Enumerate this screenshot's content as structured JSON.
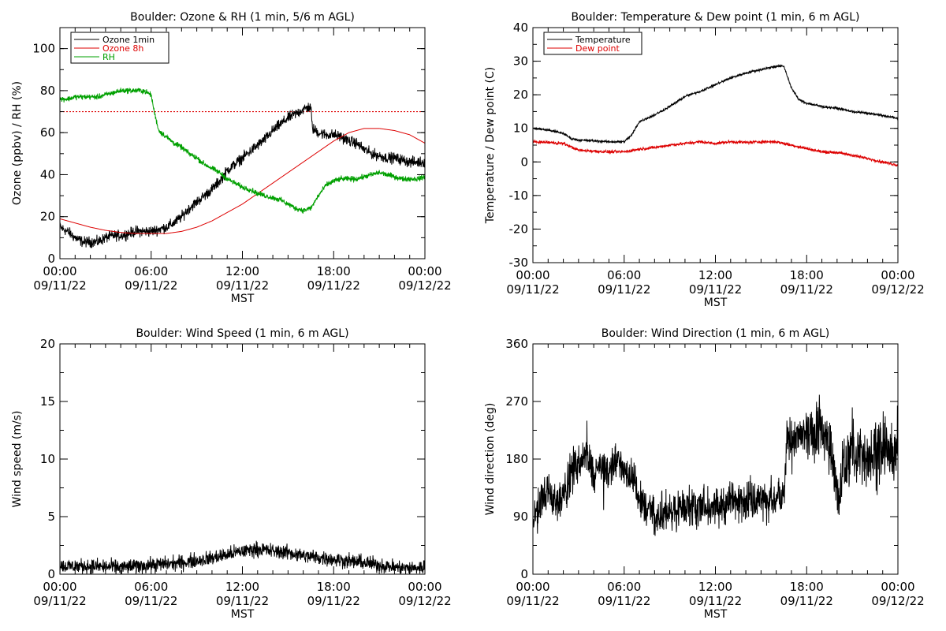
{
  "chart_data": [
    {
      "type": "line",
      "title": "Boulder: Ozone & RH (1 min, 5/6 m AGL)",
      "xlabel": "MST",
      "ylabel": "Ozone (ppbv) / RH (%)",
      "ylim": [
        0,
        110
      ],
      "yticks": [
        0,
        20,
        40,
        60,
        80,
        100
      ],
      "xlim": [
        "09/11/22 00:00",
        "09/12/22 00:00"
      ],
      "xticks": [
        {
          "time": "00:00",
          "date": "09/11/22"
        },
        {
          "time": "06:00",
          "date": "09/11/22"
        },
        {
          "time": "12:00",
          "date": "09/11/22"
        },
        {
          "time": "18:00",
          "date": "09/11/22"
        },
        {
          "time": "00:00",
          "date": "09/12/22"
        }
      ],
      "legend_position": "top-left",
      "reference_line": {
        "y": 70,
        "color": "#dd0000",
        "style": "dotted"
      },
      "series": [
        {
          "name": "Ozone 1min",
          "color": "#000000",
          "noise": 1.8,
          "x": [
            0,
            0.5,
            1,
            1.5,
            2,
            2.5,
            3,
            3.5,
            4,
            4.5,
            5,
            5.5,
            6,
            6.5,
            7,
            7.5,
            8,
            8.5,
            9,
            9.5,
            10,
            10.5,
            11,
            11.5,
            12,
            12.5,
            13,
            13.5,
            14,
            14.5,
            15,
            15.5,
            16,
            16.3,
            16.5,
            16.6,
            17,
            17.5,
            18,
            18.5,
            19,
            19.5,
            20,
            20.5,
            21,
            21.5,
            22,
            22.5,
            23,
            23.5,
            24
          ],
          "y": [
            15,
            13,
            10,
            8,
            8,
            8,
            10,
            11,
            11,
            12,
            13,
            13,
            13,
            14,
            15,
            17,
            20,
            24,
            27,
            30,
            33,
            37,
            42,
            45,
            48,
            51,
            54,
            57,
            61,
            64,
            67,
            69,
            71,
            72,
            72,
            62,
            60,
            59,
            59,
            58,
            56,
            55,
            52,
            50,
            49,
            48,
            48,
            47,
            46,
            46,
            46
          ]
        },
        {
          "name": "Ozone 8h",
          "color": "#dd0000",
          "noise": 0,
          "x": [
            0,
            1,
            2,
            3,
            4,
            5,
            6,
            7,
            8,
            9,
            10,
            11,
            12,
            13,
            14,
            15,
            16,
            17,
            18,
            19,
            20,
            21,
            22,
            23,
            24
          ],
          "y": [
            19,
            17,
            15,
            13.5,
            12.5,
            12,
            12,
            12,
            13,
            15,
            18,
            22,
            26,
            31,
            36,
            41,
            46,
            51,
            56,
            60,
            62,
            62,
            61,
            59,
            55
          ]
        },
        {
          "name": "RH",
          "color": "#00a000",
          "noise": 0.9,
          "x": [
            0,
            0.5,
            1,
            1.5,
            2,
            2.5,
            3,
            3.5,
            4,
            4.5,
            5,
            5.5,
            6,
            6.2,
            6.5,
            7,
            7.5,
            8,
            8.5,
            9,
            9.5,
            10,
            10.5,
            11,
            11.5,
            12,
            12.5,
            13,
            13.5,
            14,
            14.5,
            15,
            15.5,
            16,
            16.5,
            17,
            17.5,
            18,
            18.5,
            19,
            19.5,
            20,
            20.5,
            21,
            21.5,
            22,
            22.5,
            23,
            23.5,
            24
          ],
          "y": [
            76,
            76,
            77,
            77,
            77,
            77,
            78,
            79,
            80,
            80,
            80,
            80,
            78,
            70,
            61,
            58,
            55,
            53,
            50,
            48,
            45,
            43,
            41,
            38,
            36,
            34,
            33,
            31,
            30,
            29,
            28,
            26,
            24,
            23,
            24,
            30,
            35,
            37,
            38,
            38,
            38,
            39,
            40,
            41,
            40,
            39,
            38,
            38,
            38,
            39
          ]
        }
      ]
    },
    {
      "type": "line",
      "title": "Boulder: Temperature & Dew point (1 min, 6 m AGL)",
      "xlabel": "MST",
      "ylabel": "Temperature / Dew point (C)",
      "ylim": [
        -30,
        40
      ],
      "yticks": [
        -30,
        -20,
        -10,
        0,
        10,
        20,
        30,
        40
      ],
      "xlim": [
        "09/11/22 00:00",
        "09/12/22 00:00"
      ],
      "xticks": [
        {
          "time": "00:00",
          "date": "09/11/22"
        },
        {
          "time": "06:00",
          "date": "09/11/22"
        },
        {
          "time": "12:00",
          "date": "09/11/22"
        },
        {
          "time": "18:00",
          "date": "09/11/22"
        },
        {
          "time": "00:00",
          "date": "09/12/22"
        }
      ],
      "legend_position": "top-left",
      "series": [
        {
          "name": "Temperature",
          "color": "#000000",
          "noise": 0.25,
          "x": [
            0,
            1,
            2,
            2.5,
            3,
            4,
            5,
            6,
            6.5,
            7,
            8,
            9,
            10,
            11,
            12,
            13,
            14,
            15,
            16,
            16.5,
            17,
            17.5,
            18,
            19,
            20,
            21,
            22,
            23,
            24
          ],
          "y": [
            10,
            9.5,
            8.5,
            7,
            6.5,
            6.3,
            6,
            6,
            8,
            12,
            14,
            16.5,
            19.5,
            21,
            23,
            25,
            26.5,
            27.5,
            28.5,
            28.5,
            22,
            18.5,
            17.5,
            16.5,
            16,
            15,
            14.5,
            13.8,
            13
          ]
        },
        {
          "name": "Dew point",
          "color": "#dd0000",
          "noise": 0.3,
          "x": [
            0,
            1,
            2,
            3,
            4,
            5,
            6,
            7,
            8,
            9,
            10,
            11,
            12,
            13,
            14,
            15,
            16,
            17,
            18,
            19,
            20,
            21,
            22,
            23,
            24
          ],
          "y": [
            6,
            5.8,
            5.5,
            3.5,
            3.2,
            3,
            3,
            3.8,
            4.3,
            5,
            5.5,
            6,
            5.5,
            6,
            5.8,
            6,
            6,
            5,
            4,
            3,
            2.8,
            2,
            1,
            0,
            -1
          ]
        }
      ]
    },
    {
      "type": "line",
      "title": "Boulder: Wind Speed (1 min, 6 m AGL)",
      "xlabel": "MST",
      "ylabel": "Wind speed (m/s)",
      "ylim": [
        0,
        20
      ],
      "yticks": [
        0,
        5,
        10,
        15,
        20
      ],
      "xlim": [
        "09/11/22 00:00",
        "09/12/22 00:00"
      ],
      "xticks": [
        {
          "time": "00:00",
          "date": "09/11/22"
        },
        {
          "time": "06:00",
          "date": "09/11/22"
        },
        {
          "time": "12:00",
          "date": "09/11/22"
        },
        {
          "time": "18:00",
          "date": "09/11/22"
        },
        {
          "time": "00:00",
          "date": "09/12/22"
        }
      ],
      "series": [
        {
          "name": "",
          "color": "#000000",
          "noise": 0.45,
          "floor": 0,
          "x": [
            0,
            2,
            4,
            6,
            8,
            10,
            12,
            13,
            14,
            15,
            16,
            18,
            20,
            22,
            23,
            24
          ],
          "y": [
            0.7,
            0.7,
            0.6,
            0.8,
            1.0,
            1.4,
            2.0,
            2.2,
            2.0,
            1.9,
            1.6,
            1.3,
            1.0,
            0.6,
            0.5,
            0.6
          ]
        }
      ]
    },
    {
      "type": "line",
      "title": "Boulder: Wind Direction (1 min, 6 m AGL)",
      "xlabel": "MST",
      "ylabel": "Wind direction (deg)",
      "ylim": [
        0,
        360
      ],
      "yticks": [
        0,
        90,
        180,
        270,
        360
      ],
      "xlim": [
        "09/11/22 00:00",
        "09/12/22 00:00"
      ],
      "xticks": [
        {
          "time": "00:00",
          "date": "09/11/22"
        },
        {
          "time": "06:00",
          "date": "09/11/22"
        },
        {
          "time": "12:00",
          "date": "09/11/22"
        },
        {
          "time": "18:00",
          "date": "09/11/22"
        },
        {
          "time": "00:00",
          "date": "09/12/22"
        }
      ],
      "series": [
        {
          "name": "",
          "color": "#000000",
          "noise": 22,
          "floor": 0,
          "x": [
            0,
            0.5,
            1,
            1.5,
            2,
            2.5,
            3,
            3.5,
            4,
            4.5,
            5,
            5.5,
            6,
            6.5,
            7,
            7.5,
            8,
            9,
            10,
            11,
            12,
            13,
            14,
            15,
            16,
            16.5,
            16.7,
            17,
            18,
            19,
            19.5,
            20,
            20.3,
            20.6,
            21,
            21.5,
            22,
            22.5,
            23,
            23.5,
            24
          ],
          "y": [
            80,
            110,
            130,
            110,
            120,
            160,
            175,
            190,
            150,
            170,
            160,
            180,
            170,
            150,
            120,
            100,
            95,
            95,
            105,
            110,
            105,
            115,
            115,
            118,
            118,
            120,
            210,
            215,
            220,
            230,
            200,
            120,
            150,
            170,
            200,
            180,
            180,
            190,
            200,
            190,
            200
          ]
        }
      ]
    }
  ]
}
